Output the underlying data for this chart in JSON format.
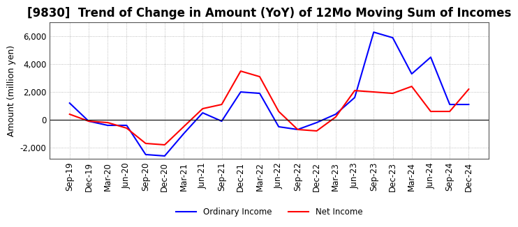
{
  "title": "[9830]  Trend of Change in Amount (YoY) of 12Mo Moving Sum of Incomes",
  "ylabel": "Amount (million yen)",
  "xlabel": "",
  "background_color": "#ffffff",
  "plot_background": "#ffffff",
  "grid_color": "#aaaaaa",
  "ylim": [
    -2800,
    7000
  ],
  "yticks": [
    -2000,
    0,
    2000,
    4000,
    6000
  ],
  "x_labels": [
    "Sep-19",
    "Dec-19",
    "Mar-20",
    "Jun-20",
    "Sep-20",
    "Dec-20",
    "Mar-21",
    "Jun-21",
    "Sep-21",
    "Dec-21",
    "Mar-22",
    "Jun-22",
    "Sep-22",
    "Dec-22",
    "Mar-23",
    "Jun-23",
    "Sep-23",
    "Dec-23",
    "Mar-24",
    "Jun-24",
    "Sep-24",
    "Dec-24"
  ],
  "ordinary_income": [
    1200,
    -100,
    -400,
    -400,
    -2500,
    -2600,
    -1000,
    500,
    -100,
    2000,
    1900,
    -500,
    -700,
    -200,
    400,
    1600,
    6300,
    5900,
    3300,
    4500,
    1100,
    1100
  ],
  "net_income": [
    400,
    -100,
    -200,
    -600,
    -1700,
    -1800,
    -500,
    800,
    1100,
    3500,
    3100,
    600,
    -700,
    -800,
    200,
    2100,
    2000,
    1900,
    2400,
    600,
    600,
    2200
  ],
  "ordinary_color": "#0000ff",
  "net_color": "#ff0000",
  "line_width": 1.5,
  "title_fontsize": 12,
  "tick_fontsize": 8.5,
  "label_fontsize": 9
}
